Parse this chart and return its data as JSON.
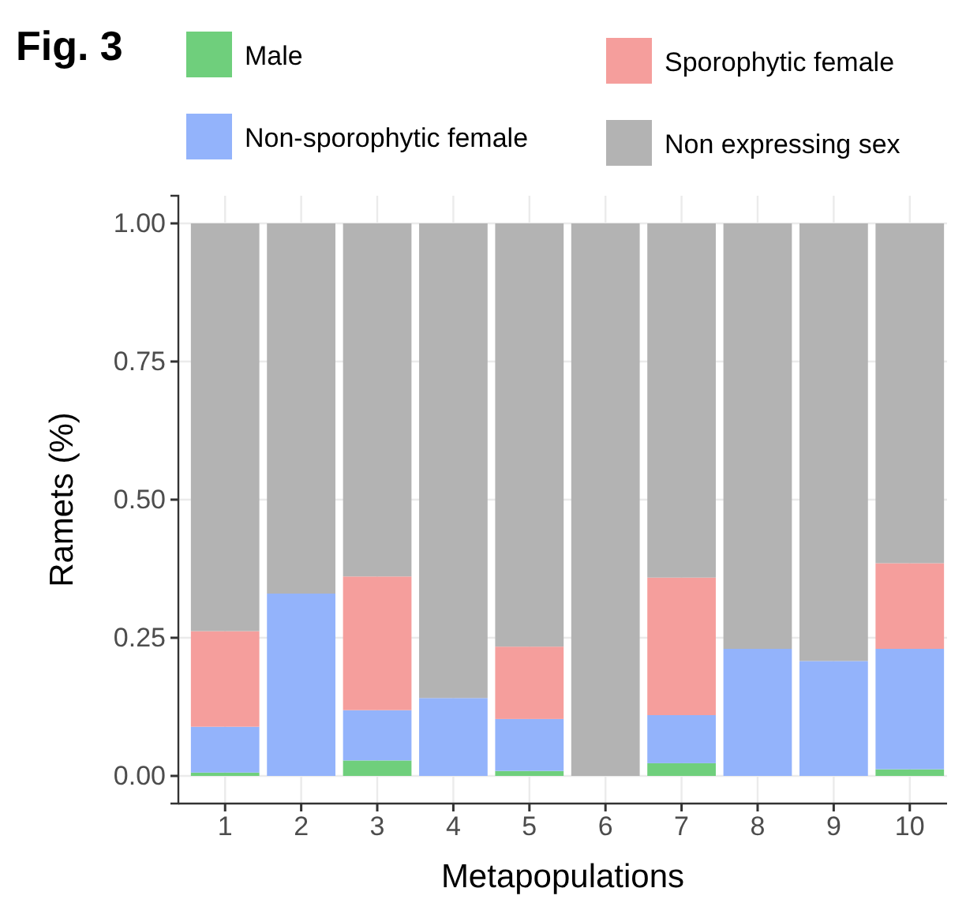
{
  "chart_data": {
    "type": "bar",
    "title": "Fig. 3",
    "xlabel": "Metapopulations",
    "ylabel": "Ramets (%)",
    "stacked": true,
    "grid": true,
    "legend": "top",
    "categories": [
      "1",
      "2",
      "3",
      "4",
      "5",
      "6",
      "7",
      "8",
      "9",
      "10"
    ],
    "ylim": [
      -0.05,
      1.05
    ],
    "yticks": [
      {
        "value": 0,
        "label": "0.00"
      },
      {
        "value": 0.25,
        "label": "0.25"
      },
      {
        "value": 0.5,
        "label": "0.50"
      },
      {
        "value": 0.75,
        "label": "0.75"
      },
      {
        "value": 1,
        "label": "1.00"
      }
    ],
    "series": [
      {
        "name": "Male",
        "color": "#6fcf7c",
        "values": [
          0.006,
          0,
          0.028,
          0,
          0.009,
          0,
          0.023,
          0,
          0,
          0.012
        ]
      },
      {
        "name": "Non-sporophytic female",
        "color": "#93b3fb",
        "values": [
          0.083,
          0.33,
          0.091,
          0.141,
          0.094,
          0,
          0.087,
          0.23,
          0.208,
          0.218
        ]
      },
      {
        "name": "Sporophytic female",
        "color": "#f59e9c",
        "values": [
          0.173,
          0,
          0.242,
          0,
          0.131,
          0,
          0.249,
          0,
          0,
          0.155
        ]
      },
      {
        "name": "Non expressing sex",
        "color": "#b3b3b3",
        "values": [
          0.738,
          0.67,
          0.639,
          0.859,
          0.766,
          1,
          0.641,
          0.77,
          0.792,
          0.615
        ]
      }
    ]
  }
}
